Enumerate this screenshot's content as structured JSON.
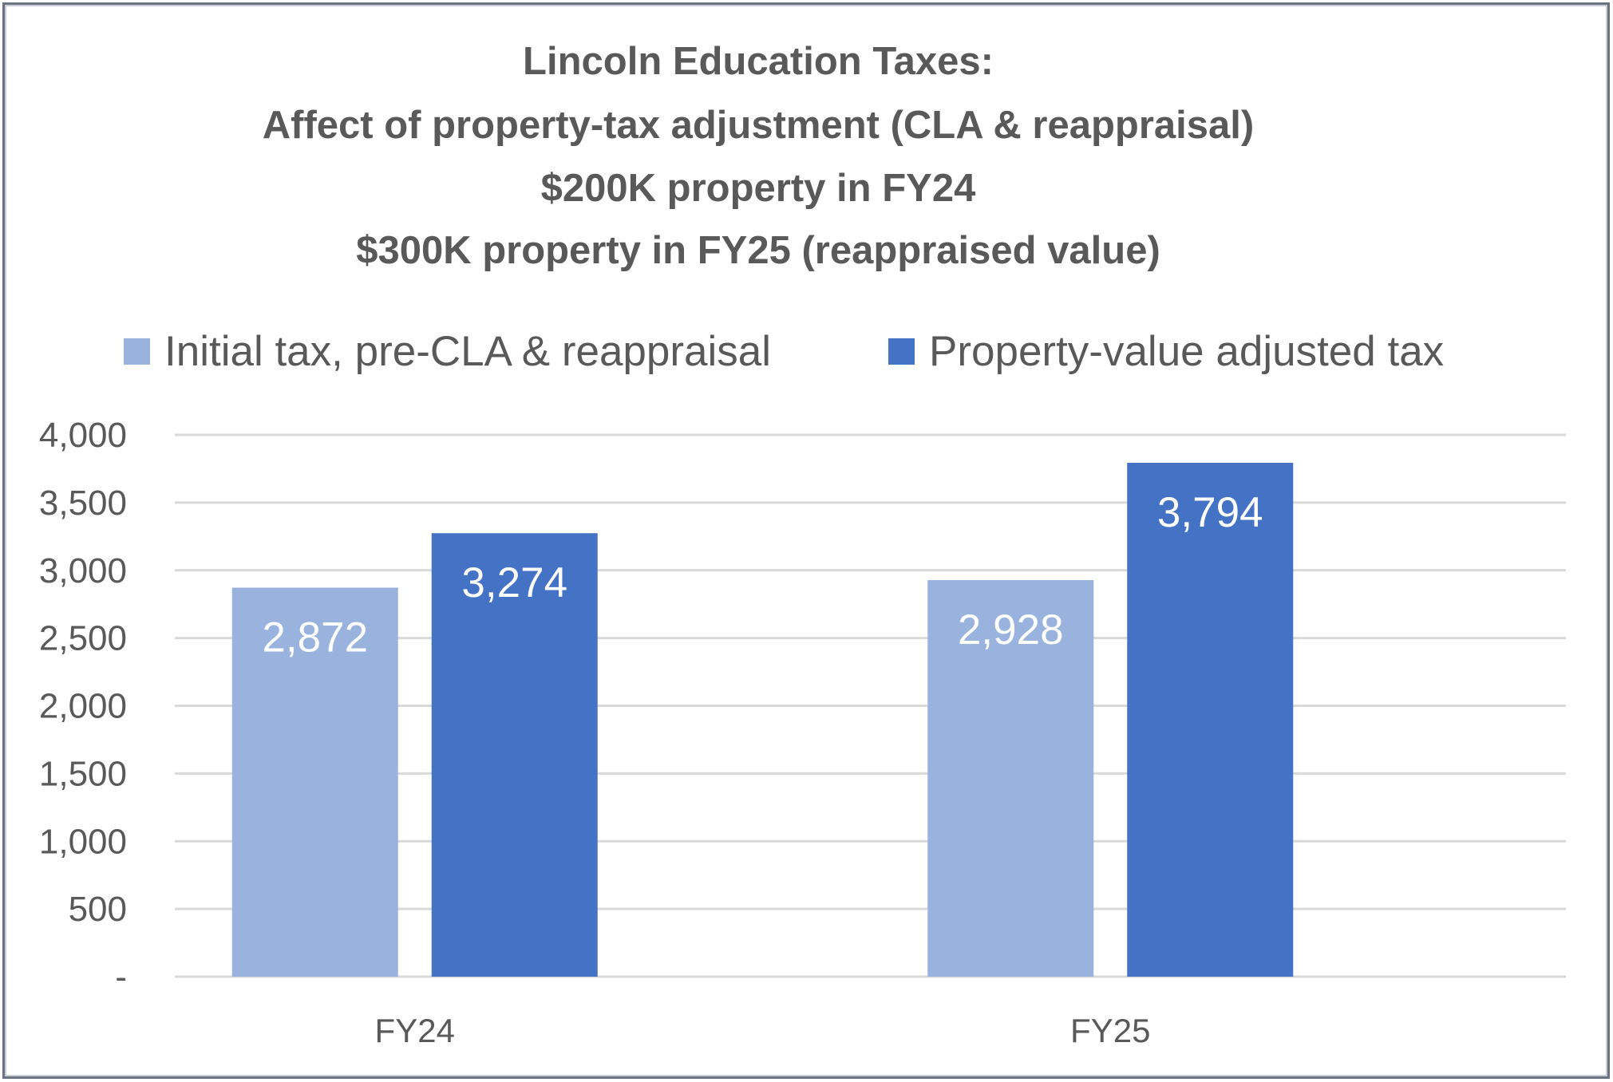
{
  "chart_data": {
    "type": "bar",
    "title_lines": [
      "Lincoln Education Taxes:",
      "Affect of property-tax adjustment (CLA & reappraisal)",
      "$200K property in FY24",
      "$300K property in FY25 (reappraised value)"
    ],
    "categories": [
      "FY24",
      "FY25"
    ],
    "series": [
      {
        "name": "Initial tax, pre-CLA & reappraisal",
        "values": [
          2872,
          2928
        ],
        "labels": [
          "2,872",
          "2,928"
        ],
        "color": "#9ab3de"
      },
      {
        "name": "Property-value adjusted tax",
        "values": [
          3274,
          3794
        ],
        "labels": [
          "3,274",
          "3,794"
        ],
        "color": "#4472c4"
      }
    ],
    "y_ticks": [
      {
        "value": 0,
        "label": "-"
      },
      {
        "value": 500,
        "label": "500"
      },
      {
        "value": 1000,
        "label": "1,000"
      },
      {
        "value": 1500,
        "label": "1,500"
      },
      {
        "value": 2000,
        "label": "2,000"
      },
      {
        "value": 2500,
        "label": "2,500"
      },
      {
        "value": 3000,
        "label": "3,000"
      },
      {
        "value": 3500,
        "label": "3,500"
      },
      {
        "value": 4000,
        "label": "4,000"
      }
    ],
    "ylim": [
      0,
      4000
    ],
    "xlabel": "",
    "ylabel": "",
    "grid": true,
    "legend_position": "top"
  }
}
